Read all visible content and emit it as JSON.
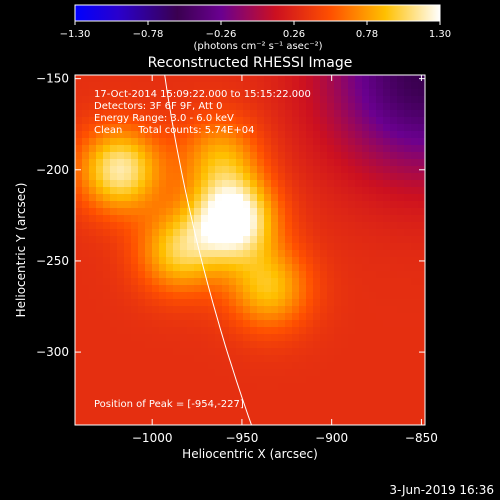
{
  "chart_data": {
    "type": "heatmap",
    "title": "Reconstructed RHESSI Image",
    "xlabel": "Heliocentric X (arcsec)",
    "ylabel": "Heliocentric Y (arcsec)",
    "xlim": [
      -1043,
      -848
    ],
    "ylim": [
      -340,
      -148
    ],
    "xticks": [
      -1000,
      -950,
      -900,
      -850
    ],
    "xtick_labels": [
      "−1000",
      "−950",
      "−900",
      "−850"
    ],
    "yticks": [
      -200,
      -250,
      -300
    ],
    "ytick_labels": [
      "−200",
      "−250",
      "−300"
    ],
    "ytick_top_label": "−150",
    "ytick_top_value": -150,
    "colorbar": {
      "min": -1.3,
      "max": 1.3,
      "ticks": [
        -1.3,
        -0.78,
        -0.26,
        0.26,
        0.78,
        1.3
      ],
      "tick_labels": [
        "−1.30",
        "−0.78",
        "−0.26",
        "0.26",
        "0.78",
        "1.30"
      ],
      "unit_label": "(photons cm⁻² s⁻¹ asec⁻²)",
      "colormap": "fire (blue-purple-red-yellow-white)"
    },
    "annotations": [
      "17-Oct-2014 15:09:22.000 to 15:15:22.000",
      "Detectors: 3F 6F 9F, Att 0",
      "Energy Range: 3.0 - 6.0 keV",
      "Clean     Total counts: 5.74E+04"
    ],
    "peak_label": "Position of Peak = [-954,-227]",
    "peak_position": [
      -954,
      -227
    ],
    "bright_sources": [
      {
        "x": -1018,
        "y": -200,
        "intensity": 1.05
      },
      {
        "x": -955,
        "y": -227,
        "intensity": 1.3
      },
      {
        "x": -985,
        "y": -245,
        "intensity": 0.85
      },
      {
        "x": -935,
        "y": -265,
        "intensity": 0.8
      },
      {
        "x": -962,
        "y": -193,
        "intensity": 0.7
      }
    ],
    "limb_visible": true
  },
  "footer": {
    "date": "3-Jun-2019 16:36"
  }
}
